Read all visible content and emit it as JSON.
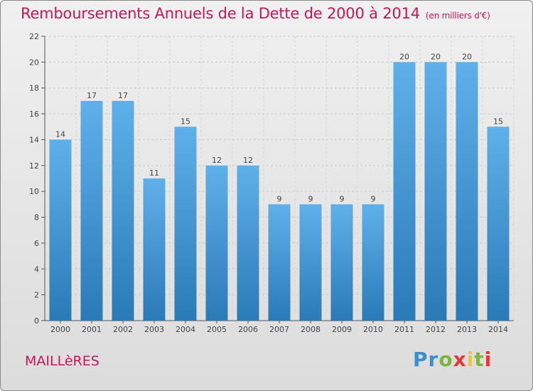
{
  "header": {
    "title": "Remboursements Annuels de la Dette de 2000 à 2014",
    "subtitle": "(en milliers d'€)"
  },
  "footer": {
    "commune": "MAILLèRES",
    "logo_text": "Proxiti"
  },
  "colors": {
    "title": "#c2185b",
    "bar_top": "#5fb0ea",
    "bar_bottom": "#2a7ab8",
    "grid": "#c8c8c8"
  },
  "chart_data": {
    "type": "bar",
    "categories": [
      "2000",
      "2001",
      "2002",
      "2003",
      "2004",
      "2005",
      "2006",
      "2007",
      "2008",
      "2009",
      "2010",
      "2011",
      "2012",
      "2013",
      "2014"
    ],
    "values": [
      14,
      17,
      17,
      11,
      15,
      12,
      12,
      9,
      9,
      9,
      9,
      20,
      20,
      20,
      15
    ],
    "ylim": [
      0,
      22
    ],
    "yticks": [
      0,
      2,
      4,
      6,
      8,
      10,
      12,
      14,
      16,
      18,
      20,
      22
    ],
    "grid": true,
    "data_labels": true
  }
}
